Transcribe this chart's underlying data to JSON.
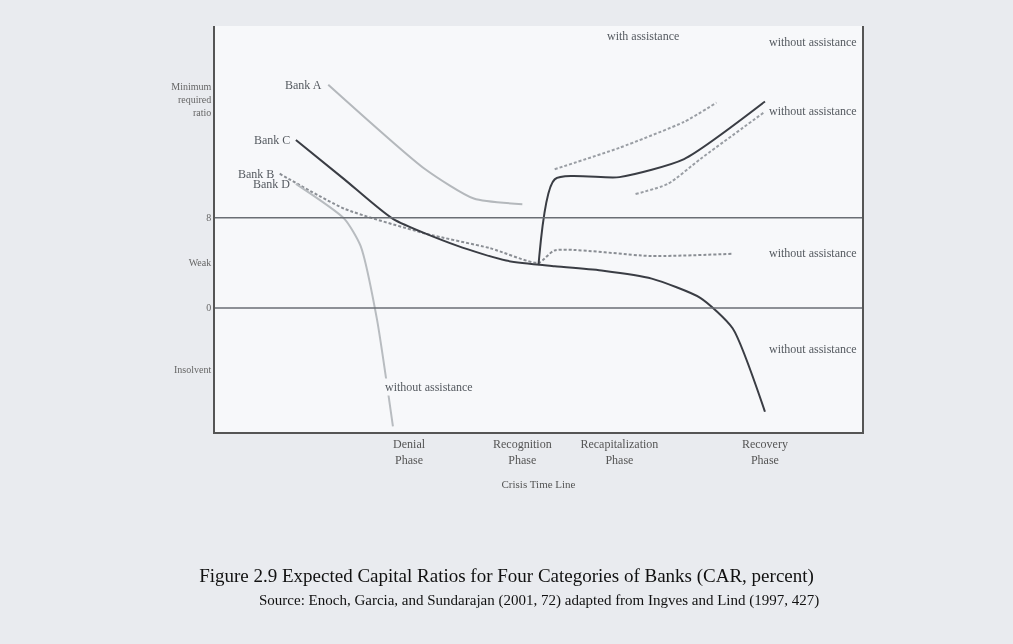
{
  "chart_data": {
    "type": "line",
    "title": "Figure 2.9 Expected Capital Ratios for Four Categories of Banks (CAR, percent)",
    "xlabel": "Crisis Time Line",
    "annotations": [
      "Source: Enoch, Garcia, and Sundarajan (2001, 72) adapted from Ingves and Lind (1997, 427)",
      "with assistance",
      "without assistance",
      "without assistance",
      "without assistance",
      "without assistance",
      "without assistance"
    ],
    "categories": [
      null,
      null,
      null,
      null,
      null,
      null,
      null,
      null,
      null,
      null,
      null,
      null,
      "Denial\nPhase",
      null,
      null,
      null,
      null,
      null,
      null,
      "Recognition\nPhase",
      null,
      null,
      null,
      null,
      null,
      "Recapitalization\nPhase",
      null,
      null,
      null,
      null,
      null,
      null,
      null,
      null,
      "Recovery\nPhase",
      null,
      null,
      null,
      null,
      null,
      null
    ],
    "series": [
      {
        "name": "Bank A",
        "color": "#b4b8bc",
        "line_style": "solid",
        "values": [
          null,
          null,
          null,
          null,
          null,
          null,
          null,
          19.8,
          null,
          null,
          null,
          null,
          null,
          12.3,
          null,
          null,
          9.7,
          null,
          null,
          9.2,
          null,
          null,
          null,
          null,
          null,
          null,
          null,
          null,
          null,
          null,
          null,
          null,
          null,
          null,
          null,
          null,
          null,
          null,
          null,
          null,
          null
        ]
      },
      {
        "color": "#9a9ea4",
        "line_style": "dotted",
        "values": [
          null,
          null,
          null,
          null,
          null,
          null,
          null,
          null,
          null,
          null,
          null,
          null,
          null,
          null,
          null,
          null,
          null,
          null,
          null,
          null,
          null,
          12.3,
          null,
          null,
          null,
          14.2,
          null,
          null,
          null,
          16.5,
          null,
          18.2,
          null,
          null,
          null,
          null,
          null,
          null,
          null,
          null,
          null
        ]
      },
      {
        "color": "#9a9ea4",
        "line_style": "dotted",
        "values": [
          null,
          null,
          null,
          null,
          null,
          null,
          null,
          null,
          null,
          null,
          null,
          null,
          null,
          null,
          null,
          null,
          null,
          null,
          null,
          null,
          null,
          null,
          null,
          null,
          null,
          null,
          10.1,
          null,
          11.0,
          null,
          13.2,
          null,
          null,
          null,
          17.4,
          null,
          null,
          null,
          null,
          null,
          null
        ]
      },
      {
        "name": "Bank B",
        "color": "#8a8e94",
        "line_style": "dotted",
        "values": [
          null,
          null,
          null,
          null,
          11.9,
          null,
          null,
          null,
          8.8,
          null,
          null,
          null,
          null,
          6.6,
          null,
          null,
          null,
          5.3,
          null,
          null,
          4.0,
          5.1,
          null,
          null,
          null,
          null,
          null,
          4.6,
          null,
          null,
          null,
          null,
          4.8,
          null,
          null,
          null,
          null,
          null,
          null,
          null,
          null
        ]
      },
      {
        "name": "Bank C",
        "color": "#3a3d44",
        "line_style": "solid",
        "values": [
          null,
          null,
          null,
          null,
          null,
          14.9,
          null,
          null,
          11.4,
          null,
          null,
          7.9,
          null,
          null,
          null,
          5.5,
          null,
          null,
          4.2,
          null,
          null,
          3.7,
          null,
          null,
          3.3,
          null,
          null,
          2.6,
          null,
          null,
          0.9,
          null,
          -1.8,
          null,
          -9.2,
          null,
          null,
          null,
          null,
          null,
          null
        ]
      },
      {
        "color": "#3a3d44",
        "line_style": "solid",
        "values": [
          null,
          null,
          null,
          null,
          null,
          null,
          null,
          null,
          null,
          null,
          null,
          null,
          null,
          null,
          null,
          null,
          null,
          null,
          null,
          null,
          3.8,
          11.4,
          null,
          null,
          null,
          11.6,
          null,
          null,
          null,
          13.2,
          null,
          null,
          null,
          null,
          18.3,
          null,
          null,
          null,
          null,
          null,
          null
        ]
      },
      {
        "name": "Bank D",
        "color": "#b8bcc0",
        "line_style": "solid",
        "values": [
          null,
          null,
          null,
          null,
          null,
          11.0,
          null,
          null,
          7.9,
          5.5,
          -0.9,
          -10.5,
          null,
          null,
          null,
          null,
          null,
          null,
          null,
          null,
          null,
          null,
          null,
          null,
          null,
          null,
          null,
          null,
          null,
          null,
          null,
          null,
          null,
          null,
          null,
          null,
          null,
          null,
          null,
          null,
          null
        ]
      }
    ],
    "ylim": [
      -11,
      25
    ],
    "yticks": [
      {
        "value": 18.5,
        "label": "Minimum\nrequired\nratio"
      },
      8,
      {
        "value": 4,
        "label": "Weak"
      },
      0,
      {
        "value": -5.5,
        "label": "Insolvent"
      }
    ],
    "ref_lines": [
      {
        "axis": "y",
        "value": 8,
        "color": "#6a6e74"
      },
      {
        "axis": "y",
        "value": 0,
        "color": "#6a6e74"
      }
    ],
    "grid": false,
    "legend": false,
    "marker": "none"
  }
}
